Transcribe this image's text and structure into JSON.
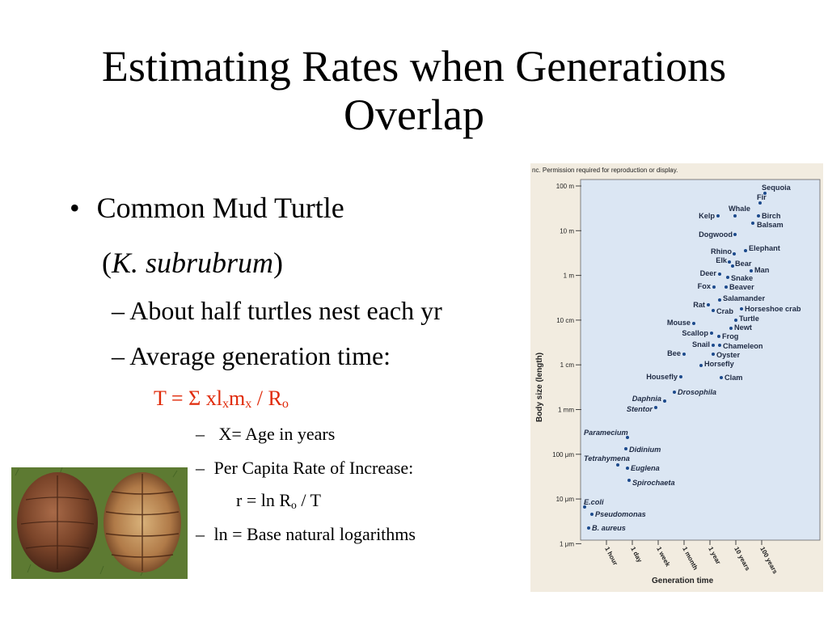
{
  "slide": {
    "title_line1": "Estimating Rates when Generations",
    "title_line2": "Overlap"
  },
  "bullets": {
    "main": "Common Mud Turtle",
    "species_open": "(",
    "species": "K. subrubrum",
    "species_close": ")",
    "sub1": "About half turtles nest each yr",
    "sub2": "Average generation time:",
    "formula": {
      "a": "T = Σ xl",
      "b": "x",
      "c": "m",
      "d": "x",
      "e": " / R",
      "f": "o"
    },
    "items": [
      {
        "text": "X= Age in years"
      },
      {
        "text": "Per Capita Rate of Increase:"
      },
      {
        "r_a": "r = ln R",
        "r_b": "o",
        "r_c": " / T"
      },
      {
        "text": "ln = Base natural logarithms"
      }
    ],
    "dash": "–"
  },
  "figure": {
    "permission": "nc. Permission required for reproduction or display.",
    "xlabel": "Generation time",
    "ylabel": "Body size (length)",
    "y_ticks": [
      "100 m",
      "10 m",
      "1 m",
      "10 cm",
      "1 cm",
      "1 mm",
      "100 μm",
      "10 μm",
      "1 μm"
    ],
    "x_ticks": [
      "1 hour",
      "1 day",
      "1 week",
      "1 month",
      "1 year",
      "10 years",
      "100 years"
    ],
    "colors": {
      "plot_bg": "#dbe6f3",
      "dot": "#1c4a8c",
      "frame": "#f2ece0"
    },
    "organisms": [
      {
        "label": "Sequoia",
        "italic": false
      },
      {
        "label": "Fir",
        "italic": false
      },
      {
        "label": "Whale",
        "italic": false
      },
      {
        "label": "Kelp",
        "italic": false
      },
      {
        "label": "Birch",
        "italic": false
      },
      {
        "label": "Balsam",
        "italic": false
      },
      {
        "label": "Dogwood",
        "italic": false
      },
      {
        "label": "Elephant",
        "italic": false
      },
      {
        "label": "Rhino",
        "italic": false
      },
      {
        "label": "Elk",
        "italic": false
      },
      {
        "label": "Bear",
        "italic": false
      },
      {
        "label": "Man",
        "italic": false
      },
      {
        "label": "Deer",
        "italic": false
      },
      {
        "label": "Snake",
        "italic": false
      },
      {
        "label": "Fox",
        "italic": false
      },
      {
        "label": "Beaver",
        "italic": false
      },
      {
        "label": "Salamander",
        "italic": false
      },
      {
        "label": "Rat",
        "italic": false
      },
      {
        "label": "Crab",
        "italic": false
      },
      {
        "label": "Horseshoe crab",
        "italic": false
      },
      {
        "label": "Turtle",
        "italic": false
      },
      {
        "label": "Mouse",
        "italic": false
      },
      {
        "label": "Newt",
        "italic": false
      },
      {
        "label": "Scallop",
        "italic": false
      },
      {
        "label": "Frog",
        "italic": false
      },
      {
        "label": "Snail",
        "italic": false
      },
      {
        "label": "Chameleon",
        "italic": false
      },
      {
        "label": "Bee",
        "italic": false
      },
      {
        "label": "Oyster",
        "italic": false
      },
      {
        "label": "Horsefly",
        "italic": false
      },
      {
        "label": "Housefly",
        "italic": false
      },
      {
        "label": "Clam",
        "italic": false
      },
      {
        "label": "Drosophila",
        "italic": true
      },
      {
        "label": "Daphnia",
        "italic": true
      },
      {
        "label": "Stentor",
        "italic": true
      },
      {
        "label": "Paramecium",
        "italic": true
      },
      {
        "label": "Didinium",
        "italic": true
      },
      {
        "label": "Tetrahymena",
        "italic": true
      },
      {
        "label": "Euglena",
        "italic": true
      },
      {
        "label": "Spirochaeta",
        "italic": true
      },
      {
        "label": "E.coli",
        "italic": true
      },
      {
        "label": "Pseudomonas",
        "italic": true
      },
      {
        "label": "B. aureus",
        "italic": true
      }
    ]
  }
}
